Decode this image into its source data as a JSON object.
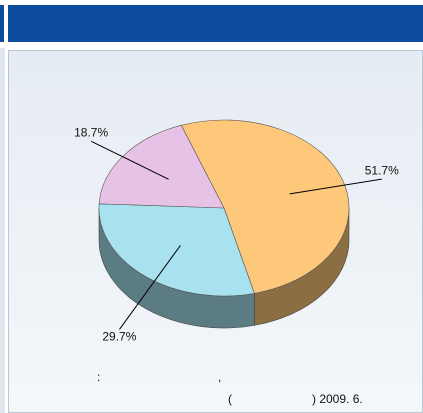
{
  "chart_data": {
    "type": "pie",
    "values": [
      51.7,
      29.7,
      18.7
    ],
    "value_labels": [
      "51.7%",
      "29.7%",
      "18.7%"
    ],
    "colors": [
      "#fec87a",
      "#a8e2ee",
      "#e6c2e6"
    ],
    "notes": [
      ":",
      ",",
      "(",
      ") 2009. 6."
    ]
  }
}
